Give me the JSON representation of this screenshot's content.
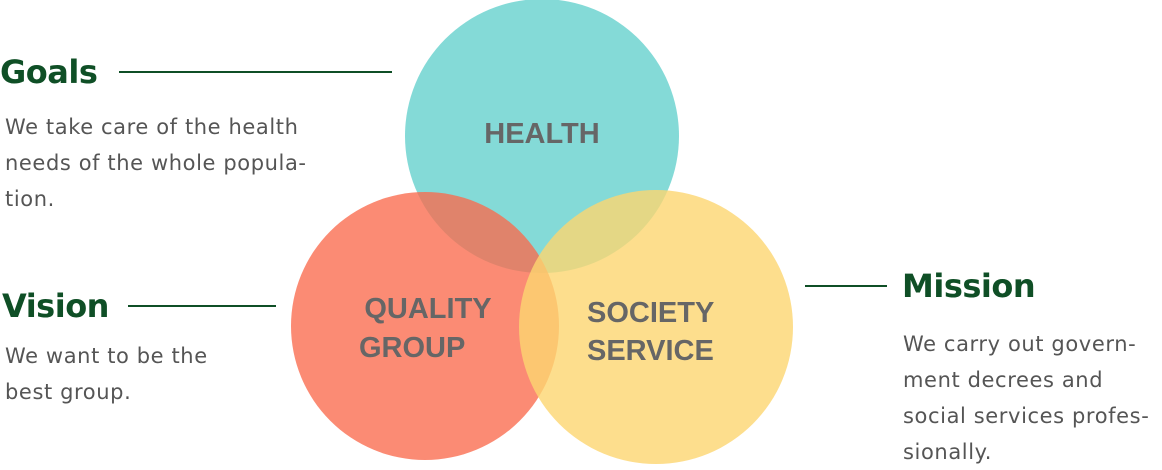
{
  "circles": {
    "health": {
      "label_lines": [
        "HEALTH"
      ],
      "color": "#55CCC8"
    },
    "quality": {
      "label_lines": [
        "QUALITY",
        "GROUP"
      ],
      "color": "#FA6A4D"
    },
    "society": {
      "label_lines": [
        "SOCIETY",
        "SERVICE"
      ],
      "color": "#FDD671"
    }
  },
  "goals": {
    "title": "Goals",
    "lines": [
      "We take care of the health",
      "needs of the whole popula-",
      "tion."
    ]
  },
  "vision": {
    "title": "Vision",
    "lines": [
      "We want to be the",
      "best group."
    ]
  },
  "mission": {
    "title": "Mission",
    "lines": [
      "We carry out govern-",
      "ment decrees and",
      "social services profes-",
      "sionally."
    ]
  },
  "colors": {
    "heading": "#0F4F26",
    "text": "#555555",
    "circle_label": "#666666"
  }
}
